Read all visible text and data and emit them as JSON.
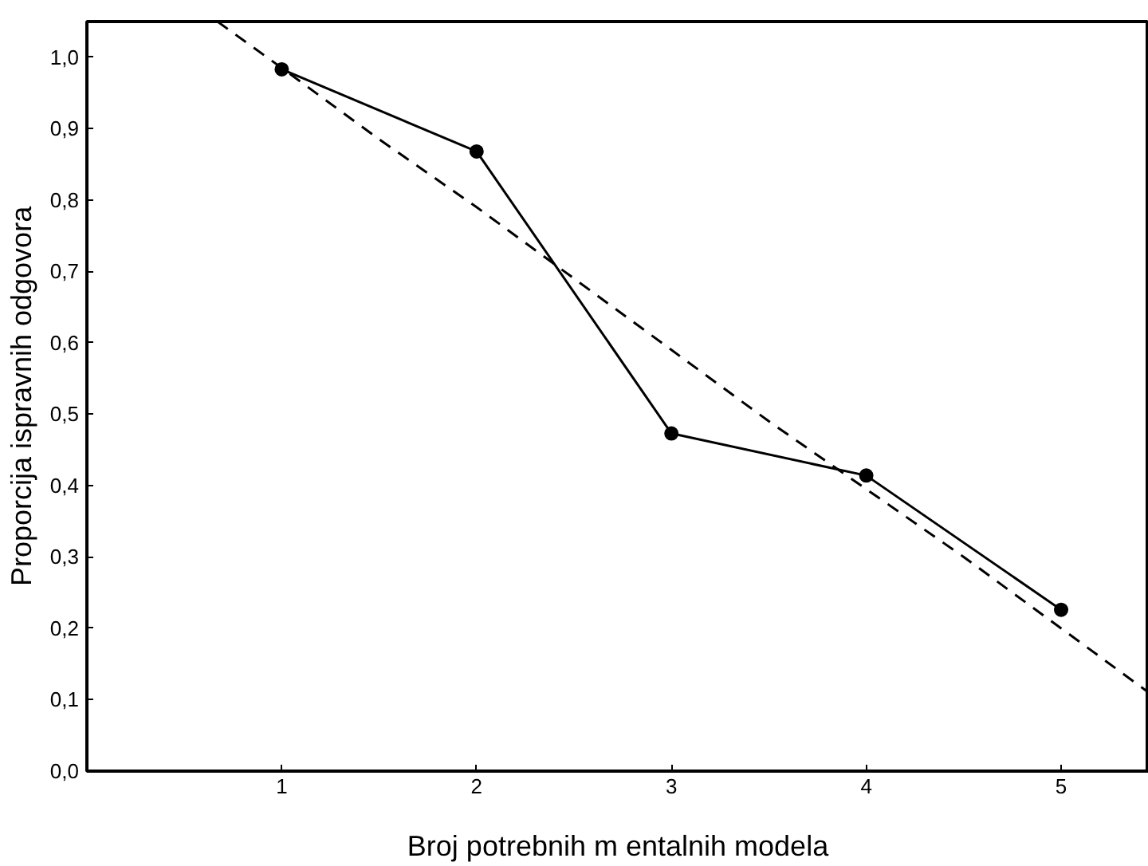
{
  "chart_data": {
    "type": "line",
    "xlabel": "Broj potrebnih m entalnih modela",
    "ylabel": "Proporcija ispravnih odgovora",
    "xlim": [
      0,
      5.45
    ],
    "ylim": [
      0,
      1.05
    ],
    "xticks": [
      1,
      2,
      3,
      4,
      5
    ],
    "yticks": [
      {
        "value": 0,
        "label": "0,0"
      },
      {
        "value": 0.1,
        "label": "0,1"
      },
      {
        "value": 0.2,
        "label": "0,2"
      },
      {
        "value": 0.3,
        "label": "0,3"
      },
      {
        "value": 0.4,
        "label": "0,4"
      },
      {
        "value": 0.5,
        "label": "0,5"
      },
      {
        "value": 0.6,
        "label": "0,6"
      },
      {
        "value": 0.7,
        "label": "0,7"
      },
      {
        "value": 0.8,
        "label": "0,8"
      },
      {
        "value": 0.9,
        "label": "0,9"
      },
      {
        "value": 1.0,
        "label": "1,0"
      }
    ],
    "grid": false,
    "series": [
      {
        "color": "#000000",
        "marker": "circle",
        "line_style": "solid",
        "x": [
          1,
          2,
          3,
          4,
          5
        ],
        "values": [
          0.983,
          0.868,
          0.473,
          0.414,
          0.226
        ]
      },
      {
        "color": "#000000",
        "marker": "none",
        "line_style": "dashed",
        "x": [
          0.67,
          1,
          1.5,
          2,
          2.5,
          3,
          3.5,
          4,
          4.5,
          5,
          5.45
        ],
        "values": [
          1.05,
          0.985,
          0.885,
          0.79,
          0.69,
          0.59,
          0.49,
          0.395,
          0.3,
          0.2,
          0.11
        ]
      }
    ]
  }
}
